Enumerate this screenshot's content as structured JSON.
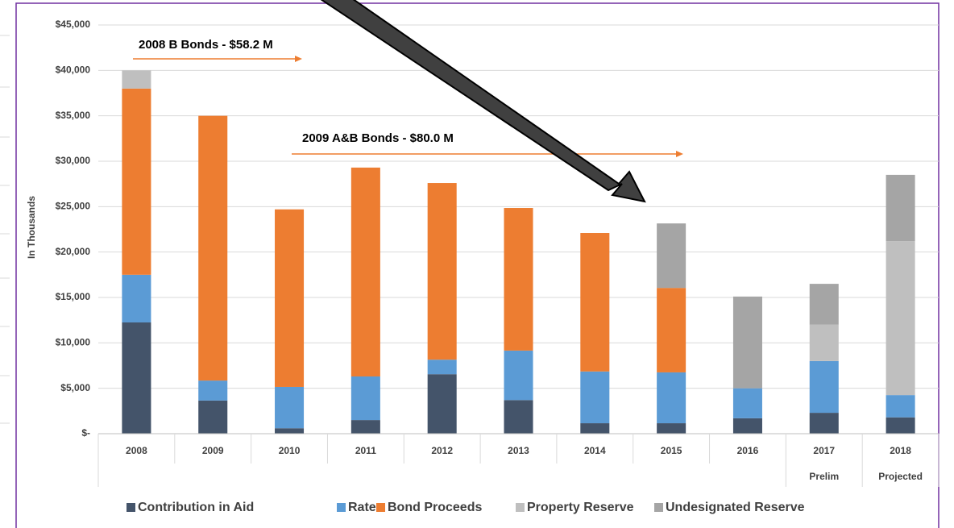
{
  "chart_data": {
    "type": "stacked_bar",
    "y_label": "In Thousands",
    "categories": [
      "2008",
      "2009",
      "2010",
      "2011",
      "2012",
      "2013",
      "2014",
      "2015",
      "2016",
      "2017",
      "2018"
    ],
    "sublabels": [
      null,
      null,
      null,
      null,
      null,
      null,
      null,
      null,
      null,
      "Prelim",
      "Projected"
    ],
    "series": [
      {
        "name": "Contribution in Aid",
        "color": "#44546a",
        "values": [
          12250,
          3650,
          600,
          1500,
          6550,
          3700,
          1150,
          1150,
          1700,
          2300,
          1800
        ]
      },
      {
        "name": "Rates",
        "color": "#5b9bd5",
        "values": [
          5250,
          2200,
          4550,
          4800,
          1600,
          5450,
          5700,
          5600,
          3300,
          5700,
          2450
        ]
      },
      {
        "name": "Bond Proceeds",
        "color": "#ed7d31",
        "values": [
          20500,
          29150,
          19550,
          23000,
          19450,
          15700,
          15250,
          9300,
          0,
          0,
          0
        ]
      },
      {
        "name": "Property Reserve",
        "color": "#bfbfbf",
        "values": [
          2000,
          0,
          0,
          0,
          0,
          0,
          0,
          0,
          0,
          4000,
          16950
        ]
      },
      {
        "name": "Undesignated Reserve",
        "color": "#a5a5a5",
        "values": [
          0,
          0,
          0,
          0,
          0,
          0,
          0,
          7100,
          10100,
          4500,
          7300
        ]
      }
    ],
    "ylim": [
      0,
      45000
    ],
    "yticks": [
      {
        "value": 0,
        "label": "$-"
      },
      {
        "value": 5000,
        "label": "$5,000"
      },
      {
        "value": 10000,
        "label": "$10,000"
      },
      {
        "value": 15000,
        "label": "$15,000"
      },
      {
        "value": 20000,
        "label": "$20,000"
      },
      {
        "value": 25000,
        "label": "$25,000"
      },
      {
        "value": 30000,
        "label": "$30,000"
      },
      {
        "value": 35000,
        "label": "$35,000"
      },
      {
        "value": 40000,
        "label": "$40,000"
      },
      {
        "value": 45000,
        "label": "$45,000"
      }
    ],
    "grid": true,
    "legend": "bottom",
    "annotations": [
      "2008 B Bonds - $58.2 M",
      "2009 A&B Bonds - $80.0 M"
    ]
  }
}
